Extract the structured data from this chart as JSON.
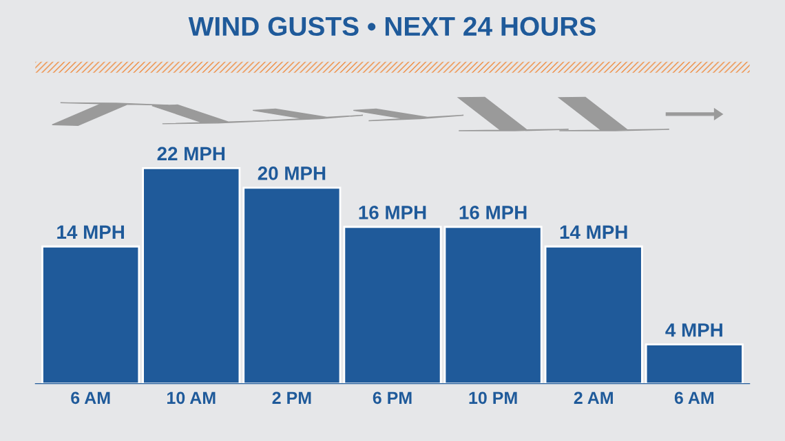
{
  "chart_data": {
    "type": "bar",
    "title": "WIND GUSTS • NEXT 24 HOURS",
    "categories": [
      "6 AM",
      "10 AM",
      "2 PM",
      "6 PM",
      "10 PM",
      "2 AM",
      "6 AM"
    ],
    "values": [
      14,
      22,
      20,
      16,
      16,
      14,
      4
    ],
    "value_labels": [
      "14 MPH",
      "22 MPH",
      "20 MPH",
      "16 MPH",
      "16 MPH",
      "14 MPH",
      "4 MPH"
    ],
    "color": "#1f5a9a",
    "grid": false,
    "legend": false
  }
}
